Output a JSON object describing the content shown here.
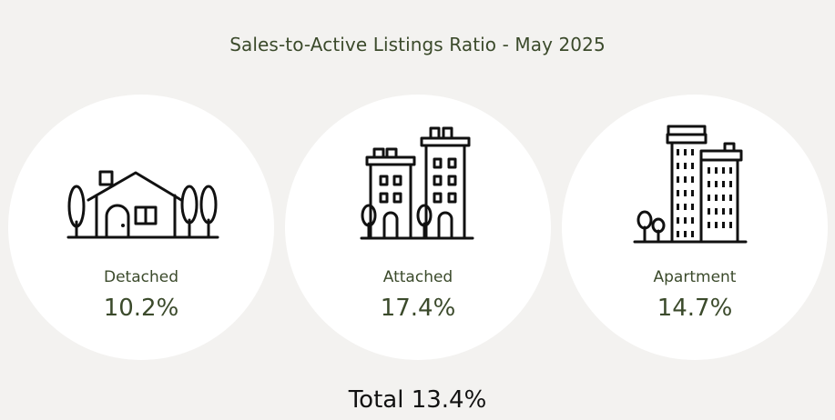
{
  "title": "Sales-to-Active Listings Ratio - May 2025",
  "cards": [
    {
      "icon": "detached-house-icon",
      "label": "Detached",
      "value": "10.2%"
    },
    {
      "icon": "attached-townhouse-icon",
      "label": "Attached",
      "value": "17.4%"
    },
    {
      "icon": "apartment-building-icon",
      "label": "Apartment",
      "value": "14.7%"
    }
  ],
  "total": "Total 13.4%",
  "colors": {
    "background": "#f3f2f0",
    "card": "#ffffff",
    "text": "#3b4a2b",
    "total_text": "#111111"
  }
}
